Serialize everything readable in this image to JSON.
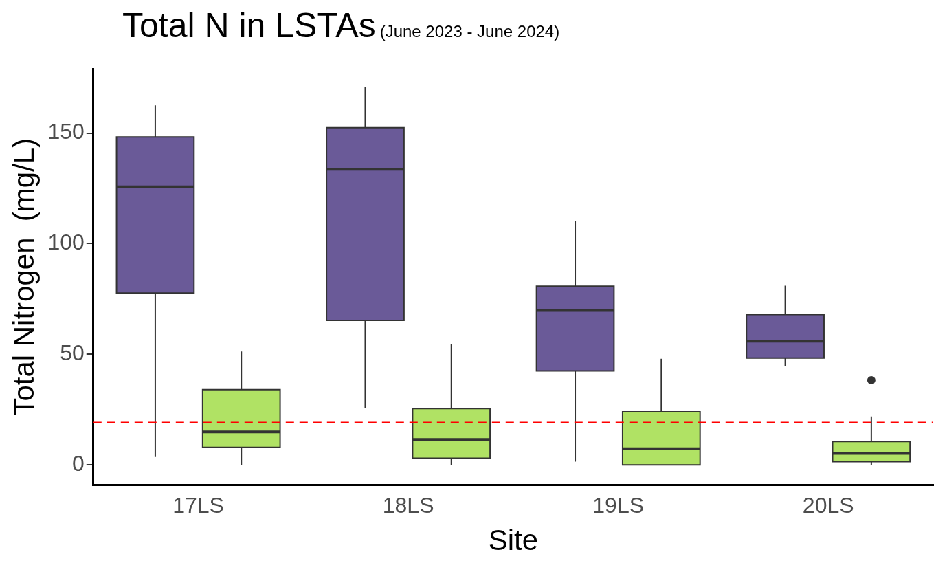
{
  "chart_data": {
    "type": "box",
    "title": "Total N in LSTAs",
    "subtitle": "(June 2023 - June 2024)",
    "xlabel": "Site",
    "ylabel": "Total Nitrogen  (mg/L)",
    "categories": [
      "17LS",
      "18LS",
      "19LS",
      "20LS"
    ],
    "series": [
      {
        "color": "#6a5a98",
        "boxes": [
          {
            "low": 3.6,
            "q1": 77.7,
            "median": 125.7,
            "q3": 148.2,
            "high": 162.5
          },
          {
            "low": 25.8,
            "q1": 65.3,
            "median": 133.6,
            "q3": 152.4,
            "high": 171
          },
          {
            "low": 1.5,
            "q1": 42.5,
            "median": 69.8,
            "q3": 80.8,
            "high": 110.2
          },
          {
            "low": 44.6,
            "q1": 48.3,
            "median": 55.9,
            "q3": 68,
            "high": 81
          }
        ]
      },
      {
        "color": "#b0e264",
        "boxes": [
          {
            "low": 0,
            "q1": 7.9,
            "median": 14.9,
            "q3": 34,
            "high": 51.3
          },
          {
            "low": 0,
            "q1": 3,
            "median": 11.5,
            "q3": 25.5,
            "high": 54.7
          },
          {
            "low": 0,
            "q1": 0,
            "median": 7.3,
            "q3": 24,
            "high": 48
          },
          {
            "low": 0,
            "q1": 1.5,
            "median": 5.2,
            "q3": 10.6,
            "high": 21.9,
            "outliers": [
              38.3
            ]
          }
        ]
      }
    ],
    "ref_lines": [
      {
        "axis": "y",
        "value": 19.1,
        "color": "#ff0000",
        "line_style": "dashed"
      }
    ],
    "ylim": [
      -9,
      179
    ],
    "yticks": [
      0,
      50,
      100,
      150
    ],
    "grid": false
  }
}
